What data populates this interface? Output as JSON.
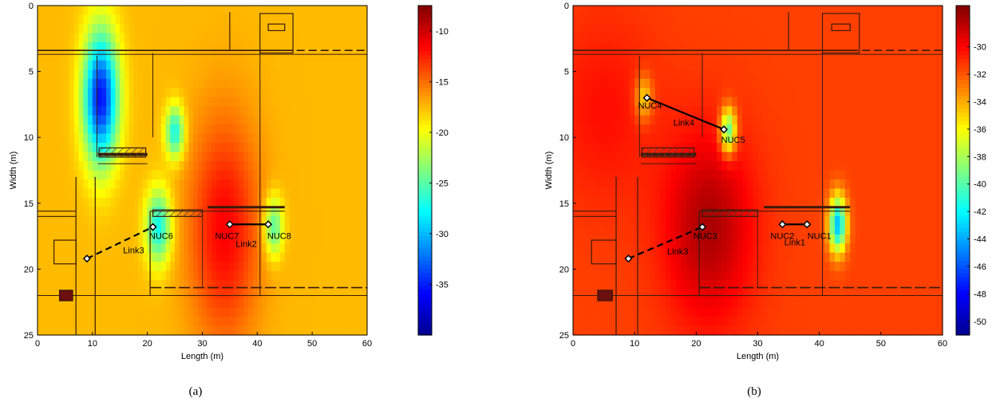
{
  "colors": {
    "scale": [
      "#00008f",
      "#0000ff",
      "#0080ff",
      "#00ffff",
      "#80ff80",
      "#ffff00",
      "#ff8000",
      "#ff0000",
      "#800000"
    ],
    "link": "#000000"
  },
  "chart_data": [
    {
      "type": "heatmap",
      "caption": "(a)",
      "xlabel": "Length (m)",
      "ylabel": "Width (m)",
      "xlim": [
        0,
        60
      ],
      "ylim": [
        0,
        25
      ],
      "y_reversed": true,
      "xticks": [
        0,
        10,
        20,
        30,
        40,
        50,
        60
      ],
      "yticks": [
        0,
        5,
        10,
        15,
        20,
        25
      ],
      "colorbar": {
        "min": -40,
        "max": -7.5,
        "ticks": [
          -10,
          -15,
          -20,
          -25,
          -30,
          -35
        ],
        "position": "right"
      },
      "background_value": -17.5,
      "field_sources": [
        {
          "x": 11.5,
          "y": 7,
          "sx": 2.2,
          "sy": 3.5,
          "amp": -18
        },
        {
          "x": 25,
          "y": 9.6,
          "sx": 1.2,
          "sy": 1.4,
          "amp": -10
        },
        {
          "x": 22,
          "y": 16.8,
          "sx": 1.6,
          "sy": 2.0,
          "amp": -10
        },
        {
          "x": 43,
          "y": 16.8,
          "sx": 1.2,
          "sy": 1.6,
          "amp": -8
        },
        {
          "x": 34,
          "y": 17,
          "sx": 4.5,
          "sy": 6.0,
          "amp": 6
        }
      ],
      "nodes": [
        {
          "label": "NUC6",
          "x": 21,
          "y": 16.8,
          "lx": 22.5,
          "ly": 17.7
        },
        {
          "label": "NUC7",
          "x": 35,
          "y": 16.6,
          "lx": 34.5,
          "ly": 17.7
        },
        {
          "label": "NUC8",
          "x": 42,
          "y": 16.6,
          "lx": 44,
          "ly": 17.7
        }
      ],
      "endpoints": [
        {
          "x": 9,
          "y": 19.2
        }
      ],
      "links": [
        {
          "label": "Link3",
          "from": [
            9,
            19.2
          ],
          "to": [
            21,
            16.8
          ],
          "dashed": true,
          "lx": 17.5,
          "ly": 18.8
        },
        {
          "label": "Link2",
          "from": [
            35,
            16.6
          ],
          "to": [
            42,
            16.6
          ],
          "dashed": false,
          "lx": 38,
          "ly": 18.3
        }
      ]
    },
    {
      "type": "heatmap",
      "caption": "(b)",
      "xlabel": "Length (m)",
      "ylabel": "Width (m)",
      "xlim": [
        0,
        60
      ],
      "ylim": [
        0,
        25
      ],
      "y_reversed": true,
      "xticks": [
        0,
        10,
        20,
        30,
        40,
        50,
        60
      ],
      "yticks": [
        0,
        5,
        10,
        15,
        20,
        25
      ],
      "colorbar": {
        "min": -51,
        "max": -27,
        "ticks": [
          -30,
          -32,
          -34,
          -36,
          -38,
          -40,
          -42,
          -44,
          -46,
          -48,
          -50
        ],
        "position": "right"
      },
      "background_value": -31.5,
      "field_sources": [
        {
          "x": 43,
          "y": 16.6,
          "sx": 1.0,
          "sy": 1.5,
          "amp": -12
        },
        {
          "x": 25.2,
          "y": 9.5,
          "sx": 0.9,
          "sy": 1.2,
          "amp": -9
        },
        {
          "x": 11.5,
          "y": 7,
          "sx": 1.0,
          "sy": 1.2,
          "amp": -4
        },
        {
          "x": 22,
          "y": 16.8,
          "sx": 5.0,
          "sy": 5.0,
          "amp": 3.5
        },
        {
          "x": 5,
          "y": 8,
          "sx": 6.0,
          "sy": 5.0,
          "amp": 1.2
        }
      ],
      "nodes": [
        {
          "label": "NUC4",
          "x": 12,
          "y": 7,
          "lx": 12.5,
          "ly": 7.8
        },
        {
          "label": "NUC5",
          "x": 24.5,
          "y": 9.4,
          "lx": 26,
          "ly": 10.4
        },
        {
          "label": "NUC3",
          "x": 21,
          "y": 16.8,
          "lx": 21.5,
          "ly": 17.7
        },
        {
          "label": "NUC2",
          "x": 34,
          "y": 16.6,
          "lx": 34,
          "ly": 17.7
        },
        {
          "label": "NUC1",
          "x": 38,
          "y": 16.6,
          "lx": 40,
          "ly": 17.7
        }
      ],
      "endpoints": [
        {
          "x": 9,
          "y": 19.2
        }
      ],
      "links": [
        {
          "label": "Link4",
          "from": [
            12,
            7
          ],
          "to": [
            24.5,
            9.4
          ],
          "dashed": false,
          "lx": 18,
          "ly": 9.1
        },
        {
          "label": "Link3",
          "from": [
            9,
            19.2
          ],
          "to": [
            21,
            16.8
          ],
          "dashed": true,
          "lx": 17,
          "ly": 18.9
        },
        {
          "label": "Link1",
          "from": [
            34,
            16.6
          ],
          "to": [
            38,
            16.6
          ],
          "dashed": false,
          "lx": 36,
          "ly": 18.2
        }
      ]
    }
  ]
}
